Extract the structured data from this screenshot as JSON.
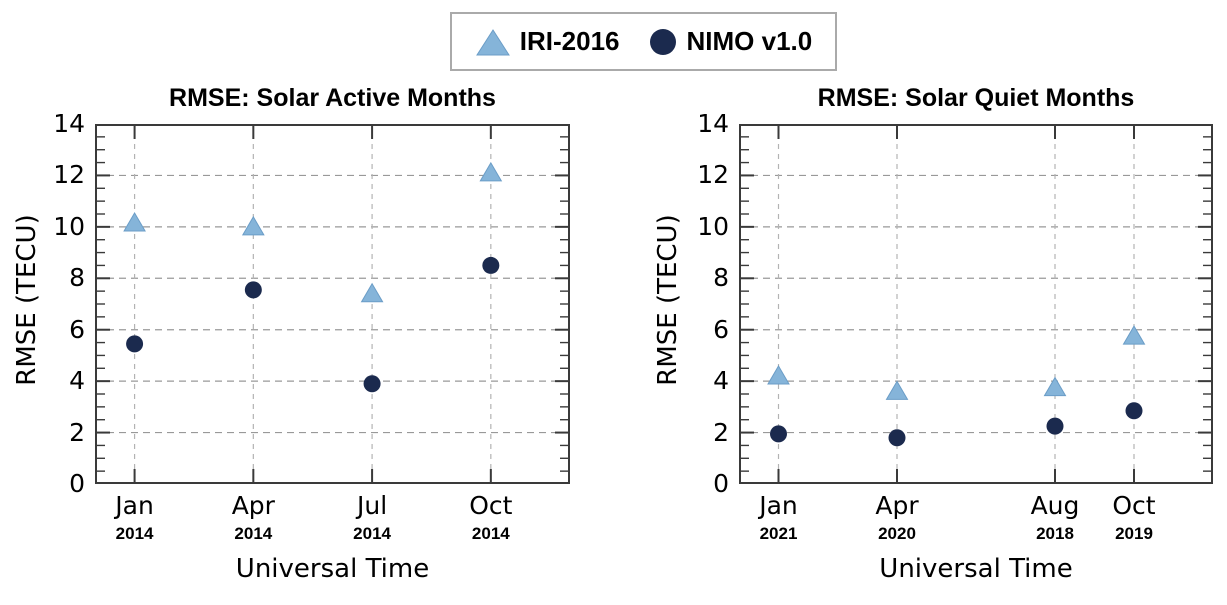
{
  "legend": {
    "items": [
      {
        "label": "IRI-2016",
        "marker": "triangle",
        "color": "#85b4d9"
      },
      {
        "label": "NIMO v1.0",
        "marker": "circle",
        "color": "#1b2a4e"
      }
    ]
  },
  "chart_data": [
    {
      "type": "scatter",
      "title": "RMSE: Solar Active Months",
      "xlabel": "Universal Time",
      "ylabel": "RMSE  (TECU)",
      "xlim": [
        0,
        12
      ],
      "ylim": [
        0,
        14
      ],
      "yticks": [
        0,
        2,
        4,
        6,
        8,
        10,
        12,
        14
      ],
      "y_minor_step": 0.5,
      "grid": true,
      "legend_position": "top-center",
      "categories": [
        {
          "month": "Jan",
          "year": "2014",
          "x": 1
        },
        {
          "month": "Apr",
          "year": "2014",
          "x": 4
        },
        {
          "month": "Jul",
          "year": "2014",
          "x": 7
        },
        {
          "month": "Oct",
          "year": "2014",
          "x": 10
        }
      ],
      "series": [
        {
          "name": "IRI-2016",
          "marker": "triangle",
          "color": "#85b4d9",
          "values": [
            10.15,
            10.0,
            7.4,
            12.1
          ]
        },
        {
          "name": "NIMO v1.0",
          "marker": "circle",
          "color": "#1b2a4e",
          "values": [
            5.45,
            7.55,
            3.9,
            8.5
          ]
        }
      ]
    },
    {
      "type": "scatter",
      "title": "RMSE: Solar Quiet Months",
      "xlabel": "Universal Time",
      "ylabel": "RMSE  (TECU)",
      "xlim": [
        0,
        12
      ],
      "ylim": [
        0,
        14
      ],
      "yticks": [
        0,
        2,
        4,
        6,
        8,
        10,
        12,
        14
      ],
      "y_minor_step": 0.5,
      "grid": true,
      "legend_position": "top-center",
      "categories": [
        {
          "month": "Jan",
          "year": "2021",
          "x": 1
        },
        {
          "month": "Apr",
          "year": "2020",
          "x": 4
        },
        {
          "month": "Aug",
          "year": "2018",
          "x": 8
        },
        {
          "month": "Oct",
          "year": "2019",
          "x": 10
        }
      ],
      "series": [
        {
          "name": "IRI-2016",
          "marker": "triangle",
          "color": "#85b4d9",
          "values": [
            4.2,
            3.6,
            3.75,
            5.75
          ]
        },
        {
          "name": "NIMO v1.0",
          "marker": "circle",
          "color": "#1b2a4e",
          "values": [
            1.95,
            1.8,
            2.25,
            2.85
          ]
        }
      ]
    }
  ]
}
